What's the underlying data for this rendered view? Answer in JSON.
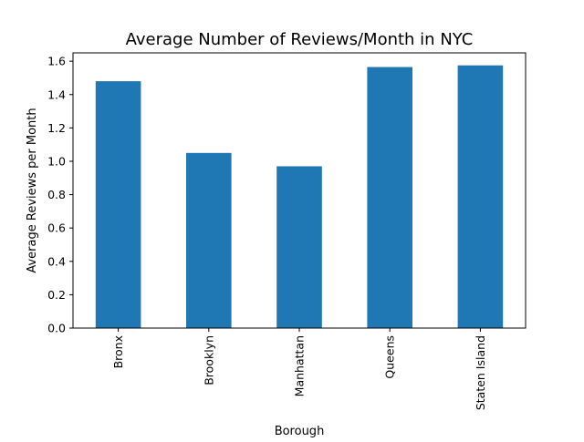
{
  "chart_data": {
    "type": "bar",
    "title": "Average Number of Reviews/Month in NYC",
    "xlabel": "Borough",
    "ylabel": "Average Reviews per Month",
    "categories": [
      "Bronx",
      "Brooklyn",
      "Manhattan",
      "Queens",
      "Staten Island"
    ],
    "values": [
      1.48,
      1.05,
      0.97,
      1.565,
      1.575
    ],
    "ylim": [
      0,
      1.65
    ],
    "yticks": [
      "0.0",
      "0.2",
      "0.4",
      "0.6",
      "0.8",
      "1.0",
      "1.2",
      "1.4",
      "1.6"
    ],
    "grid": false,
    "bar_color": "#1f77b4",
    "x_tick_rotation": "vertical"
  }
}
